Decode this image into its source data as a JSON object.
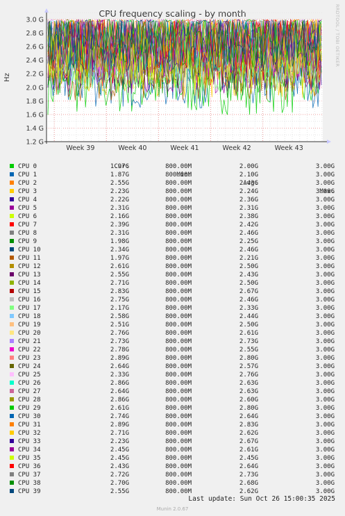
{
  "side_label": "RRDTOOL / TOBI OETIKER",
  "footer": "Munin 2.0.67",
  "last_update": "Last update: Sun Oct 26 15:00:35 2025",
  "legend_headers": {
    "cur": "Cur:",
    "min": "Min:",
    "avg": "Avg:",
    "max": "Max:"
  },
  "chart_data": {
    "type": "line",
    "title": "CPU frequency scaling - by month",
    "ylabel": "Hz",
    "ylim": [
      1200000000,
      3000000000
    ],
    "y_ticks": [
      "1.2 G",
      "1.4 G",
      "1.6 G",
      "1.8 G",
      "2.0 G",
      "2.2 G",
      "2.4 G",
      "2.6 G",
      "2.8 G",
      "3.0 G"
    ],
    "x_ticks": [
      "Week 39",
      "Week 40",
      "Week 41",
      "Week 42",
      "Week 43"
    ],
    "grid": true,
    "series": [
      {
        "name": "CPU 0",
        "color": "#00cc00",
        "cur": "1.97G",
        "min": "800.00M",
        "avg": "2.00G",
        "max": "3.00G"
      },
      {
        "name": "CPU 1",
        "color": "#0066b3",
        "cur": "1.87G",
        "min": "800.00M",
        "avg": "2.10G",
        "max": "3.00G"
      },
      {
        "name": "CPU 2",
        "color": "#ff8000",
        "cur": "2.55G",
        "min": "800.00M",
        "avg": "2.43G",
        "max": "3.00G"
      },
      {
        "name": "CPU 3",
        "color": "#ffcc00",
        "cur": "2.23G",
        "min": "800.00M",
        "avg": "2.24G",
        "max": "3.00G"
      },
      {
        "name": "CPU 4",
        "color": "#330099",
        "cur": "2.22G",
        "min": "800.00M",
        "avg": "2.36G",
        "max": "3.00G"
      },
      {
        "name": "CPU 5",
        "color": "#990099",
        "cur": "2.31G",
        "min": "800.00M",
        "avg": "2.31G",
        "max": "3.00G"
      },
      {
        "name": "CPU 6",
        "color": "#ccff00",
        "cur": "2.16G",
        "min": "800.00M",
        "avg": "2.38G",
        "max": "3.00G"
      },
      {
        "name": "CPU 7",
        "color": "#ff0000",
        "cur": "2.39G",
        "min": "800.00M",
        "avg": "2.42G",
        "max": "3.00G"
      },
      {
        "name": "CPU 8",
        "color": "#808080",
        "cur": "2.31G",
        "min": "800.00M",
        "avg": "2.46G",
        "max": "3.00G"
      },
      {
        "name": "CPU 9",
        "color": "#008f00",
        "cur": "1.98G",
        "min": "800.00M",
        "avg": "2.25G",
        "max": "3.00G"
      },
      {
        "name": "CPU 10",
        "color": "#00487d",
        "cur": "2.34G",
        "min": "800.00M",
        "avg": "2.46G",
        "max": "3.00G"
      },
      {
        "name": "CPU 11",
        "color": "#b35a00",
        "cur": "1.97G",
        "min": "800.00M",
        "avg": "2.21G",
        "max": "3.00G"
      },
      {
        "name": "CPU 12",
        "color": "#b38f00",
        "cur": "2.61G",
        "min": "800.00M",
        "avg": "2.50G",
        "max": "3.00G"
      },
      {
        "name": "CPU 13",
        "color": "#6b006b",
        "cur": "2.55G",
        "min": "800.00M",
        "avg": "2.43G",
        "max": "3.00G"
      },
      {
        "name": "CPU 14",
        "color": "#8fb300",
        "cur": "2.71G",
        "min": "800.00M",
        "avg": "2.50G",
        "max": "3.00G"
      },
      {
        "name": "CPU 15",
        "color": "#b30000",
        "cur": "2.83G",
        "min": "800.00M",
        "avg": "2.67G",
        "max": "3.00G"
      },
      {
        "name": "CPU 16",
        "color": "#bebebe",
        "cur": "2.75G",
        "min": "800.00M",
        "avg": "2.46G",
        "max": "3.00G"
      },
      {
        "name": "CPU 17",
        "color": "#80ff80",
        "cur": "2.17G",
        "min": "800.00M",
        "avg": "2.33G",
        "max": "3.00G"
      },
      {
        "name": "CPU 18",
        "color": "#80c9ff",
        "cur": "2.58G",
        "min": "800.00M",
        "avg": "2.44G",
        "max": "3.00G"
      },
      {
        "name": "CPU 19",
        "color": "#ffc080",
        "cur": "2.51G",
        "min": "800.00M",
        "avg": "2.50G",
        "max": "3.00G"
      },
      {
        "name": "CPU 20",
        "color": "#ffe680",
        "cur": "2.76G",
        "min": "800.00M",
        "avg": "2.61G",
        "max": "3.00G"
      },
      {
        "name": "CPU 21",
        "color": "#aa80ff",
        "cur": "2.73G",
        "min": "800.00M",
        "avg": "2.73G",
        "max": "3.00G"
      },
      {
        "name": "CPU 22",
        "color": "#ee00cc",
        "cur": "2.78G",
        "min": "800.00M",
        "avg": "2.55G",
        "max": "3.00G"
      },
      {
        "name": "CPU 23",
        "color": "#ff8080",
        "cur": "2.89G",
        "min": "800.00M",
        "avg": "2.80G",
        "max": "3.00G"
      },
      {
        "name": "CPU 24",
        "color": "#666600",
        "cur": "2.64G",
        "min": "800.00M",
        "avg": "2.57G",
        "max": "3.00G"
      },
      {
        "name": "CPU 25",
        "color": "#ffbfff",
        "cur": "2.33G",
        "min": "800.00M",
        "avg": "2.76G",
        "max": "3.00G"
      },
      {
        "name": "CPU 26",
        "color": "#00ffcc",
        "cur": "2.86G",
        "min": "800.00M",
        "avg": "2.63G",
        "max": "3.00G"
      },
      {
        "name": "CPU 27",
        "color": "#cc6699",
        "cur": "2.64G",
        "min": "800.00M",
        "avg": "2.63G",
        "max": "3.00G"
      },
      {
        "name": "CPU 28",
        "color": "#999900",
        "cur": "2.86G",
        "min": "800.00M",
        "avg": "2.60G",
        "max": "3.00G"
      },
      {
        "name": "CPU 29",
        "color": "#00cc00",
        "cur": "2.61G",
        "min": "800.00M",
        "avg": "2.80G",
        "max": "3.00G"
      },
      {
        "name": "CPU 30",
        "color": "#0066b3",
        "cur": "2.74G",
        "min": "800.00M",
        "avg": "2.64G",
        "max": "3.00G"
      },
      {
        "name": "CPU 31",
        "color": "#ff8000",
        "cur": "2.89G",
        "min": "800.00M",
        "avg": "2.83G",
        "max": "3.00G"
      },
      {
        "name": "CPU 32",
        "color": "#ffcc00",
        "cur": "2.71G",
        "min": "800.00M",
        "avg": "2.62G",
        "max": "3.00G"
      },
      {
        "name": "CPU 33",
        "color": "#330099",
        "cur": "2.23G",
        "min": "800.00M",
        "avg": "2.67G",
        "max": "3.00G"
      },
      {
        "name": "CPU 34",
        "color": "#990099",
        "cur": "2.45G",
        "min": "800.00M",
        "avg": "2.61G",
        "max": "3.00G"
      },
      {
        "name": "CPU 35",
        "color": "#ccff00",
        "cur": "2.45G",
        "min": "800.00M",
        "avg": "2.45G",
        "max": "3.00G"
      },
      {
        "name": "CPU 36",
        "color": "#ff0000",
        "cur": "2.43G",
        "min": "800.00M",
        "avg": "2.64G",
        "max": "3.00G"
      },
      {
        "name": "CPU 37",
        "color": "#808080",
        "cur": "2.72G",
        "min": "800.00M",
        "avg": "2.73G",
        "max": "3.00G"
      },
      {
        "name": "CPU 38",
        "color": "#008f00",
        "cur": "2.70G",
        "min": "800.00M",
        "avg": "2.68G",
        "max": "3.00G"
      },
      {
        "name": "CPU 39",
        "color": "#00487d",
        "cur": "2.55G",
        "min": "800.00M",
        "avg": "2.62G",
        "max": "3.00G"
      }
    ]
  }
}
